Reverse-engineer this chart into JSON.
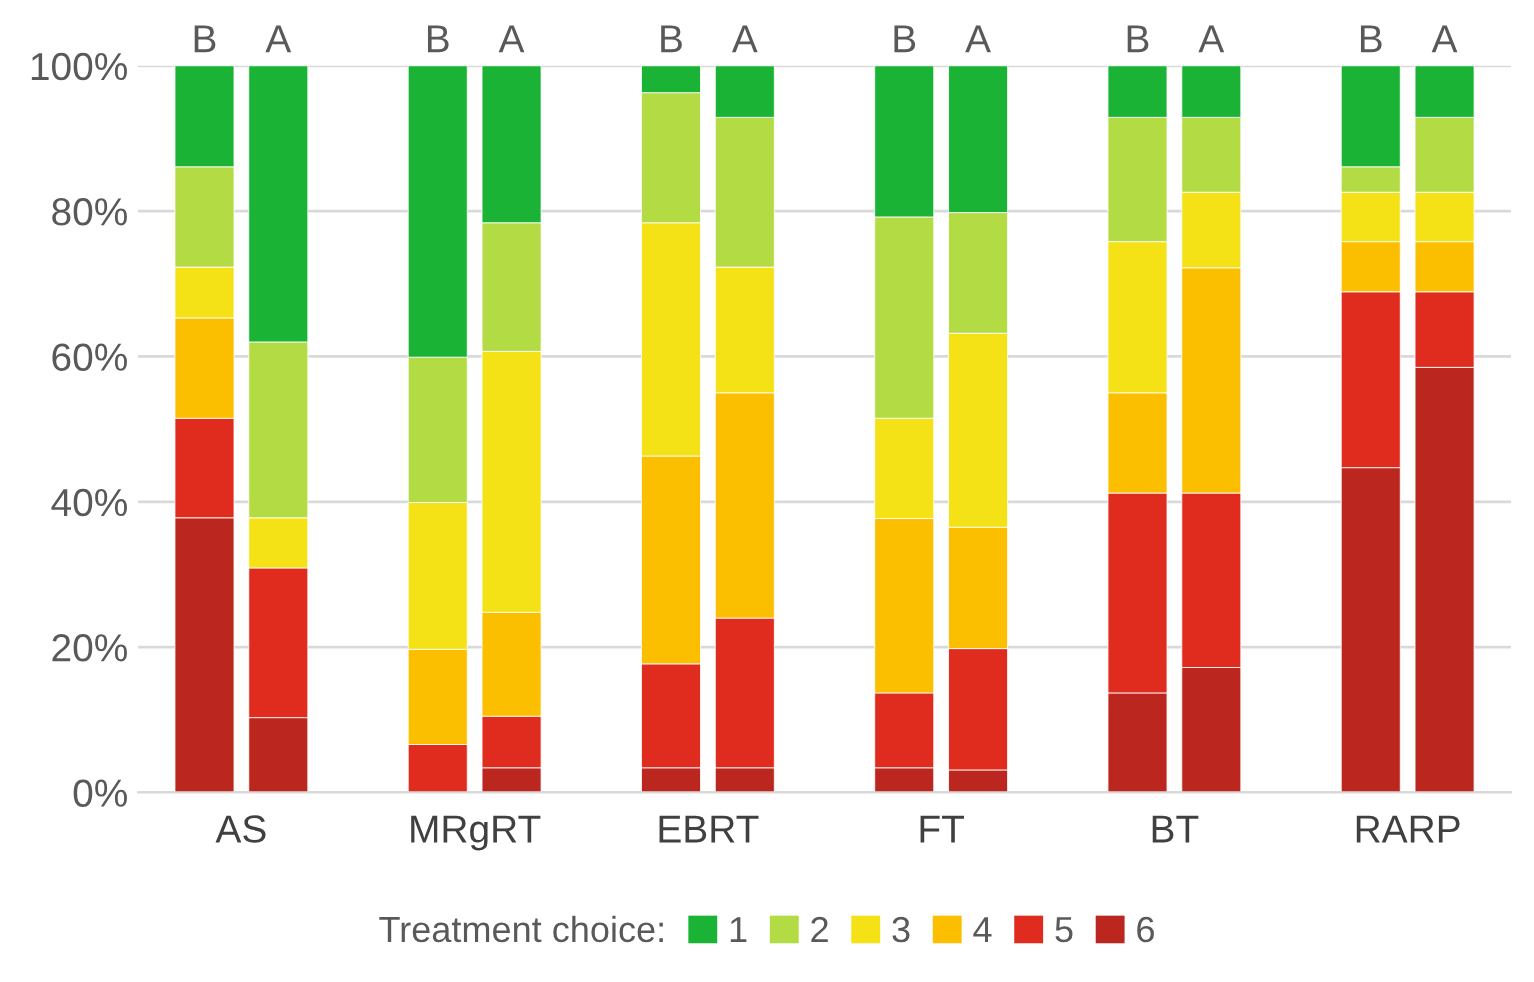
{
  "chart_data": {
    "type": "bar",
    "stacked": true,
    "categories": [
      "B",
      "A",
      "B",
      "A",
      "B",
      "A",
      "B",
      "A",
      "B",
      "A",
      "B",
      "A"
    ],
    "annotations": [
      "AS",
      "MRgRT",
      "EBRT",
      "FT",
      "BT",
      "RARP"
    ],
    "legend_title": "Treatment choice:",
    "series": [
      {
        "name": "6",
        "color": "#bb271e",
        "values": [
          37.8,
          10.3,
          0,
          3.4,
          3.4,
          3.4,
          3.4,
          3.1,
          13.7,
          17.2,
          44.7,
          58.5
        ]
      },
      {
        "name": "5",
        "color": "#e02b1f",
        "values": [
          13.7,
          20.6,
          6.6,
          7.1,
          14.3,
          20.6,
          10.3,
          16.7,
          27.5,
          24.0,
          24.2,
          10.4
        ]
      },
      {
        "name": "4",
        "color": "#fbbf00",
        "values": [
          13.8,
          0,
          13.1,
          14.3,
          28.6,
          31.0,
          24.0,
          16.7,
          13.8,
          31.0,
          6.9,
          6.9
        ]
      },
      {
        "name": "3",
        "color": "#f5e216",
        "values": [
          7.0,
          6.9,
          20.2,
          35.9,
          32.1,
          17.3,
          13.8,
          26.7,
          20.8,
          10.4,
          6.8,
          6.8
        ]
      },
      {
        "name": "2",
        "color": "#b2db44",
        "values": [
          13.8,
          24.2,
          20.0,
          17.7,
          17.9,
          20.6,
          27.7,
          16.6,
          17.1,
          10.3,
          3.5,
          10.3
        ]
      },
      {
        "name": "1",
        "color": "#1bb336",
        "values": [
          13.9,
          38.0,
          40.1,
          21.6,
          3.7,
          7.1,
          20.8,
          20.2,
          7.1,
          7.1,
          13.9,
          7.1
        ]
      }
    ],
    "ylim": [
      0,
      100
    ],
    "yticks": [
      {
        "value": 0,
        "label": "0%"
      },
      {
        "value": 20,
        "label": "20%"
      },
      {
        "value": 40,
        "label": "40%"
      },
      {
        "value": 60,
        "label": "60%"
      },
      {
        "value": 80,
        "label": "80%"
      },
      {
        "value": 100,
        "label": "100%"
      }
    ],
    "grid": "y",
    "legend": "bottom"
  }
}
